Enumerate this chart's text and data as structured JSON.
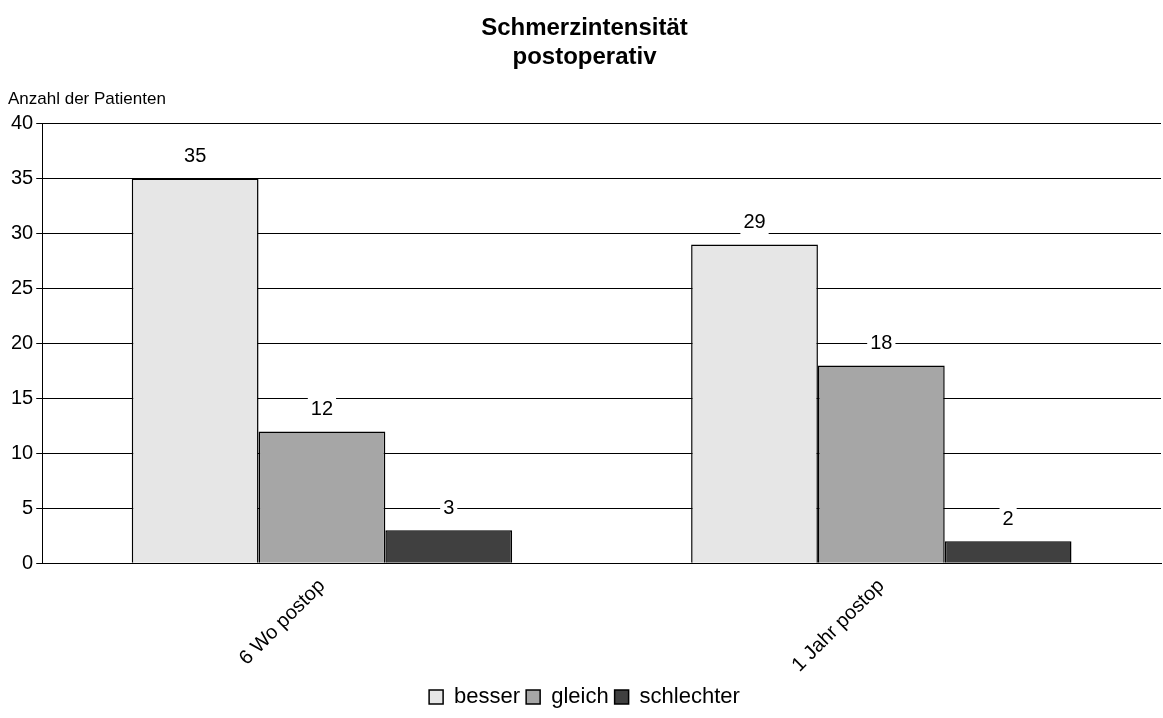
{
  "chart_data": {
    "type": "bar",
    "title": "Schmerzintensität\npostoperativ",
    "ylabel": "Anzahl der Patienten",
    "categories": [
      "6 Wo postop",
      "1 Jahr postop"
    ],
    "series": [
      {
        "name": "besser",
        "color": "#e6e6e6",
        "values": [
          35,
          29
        ]
      },
      {
        "name": "gleich",
        "color": "#a6a6a6",
        "values": [
          12,
          18
        ]
      },
      {
        "name": "schlechter",
        "color": "#404040",
        "values": [
          3,
          2
        ]
      }
    ],
    "ylim": [
      0,
      40
    ],
    "yticks": [
      0,
      5,
      10,
      15,
      20,
      25,
      30,
      35,
      40
    ],
    "grid": "y",
    "legend": "bottom",
    "data_labels": true
  }
}
